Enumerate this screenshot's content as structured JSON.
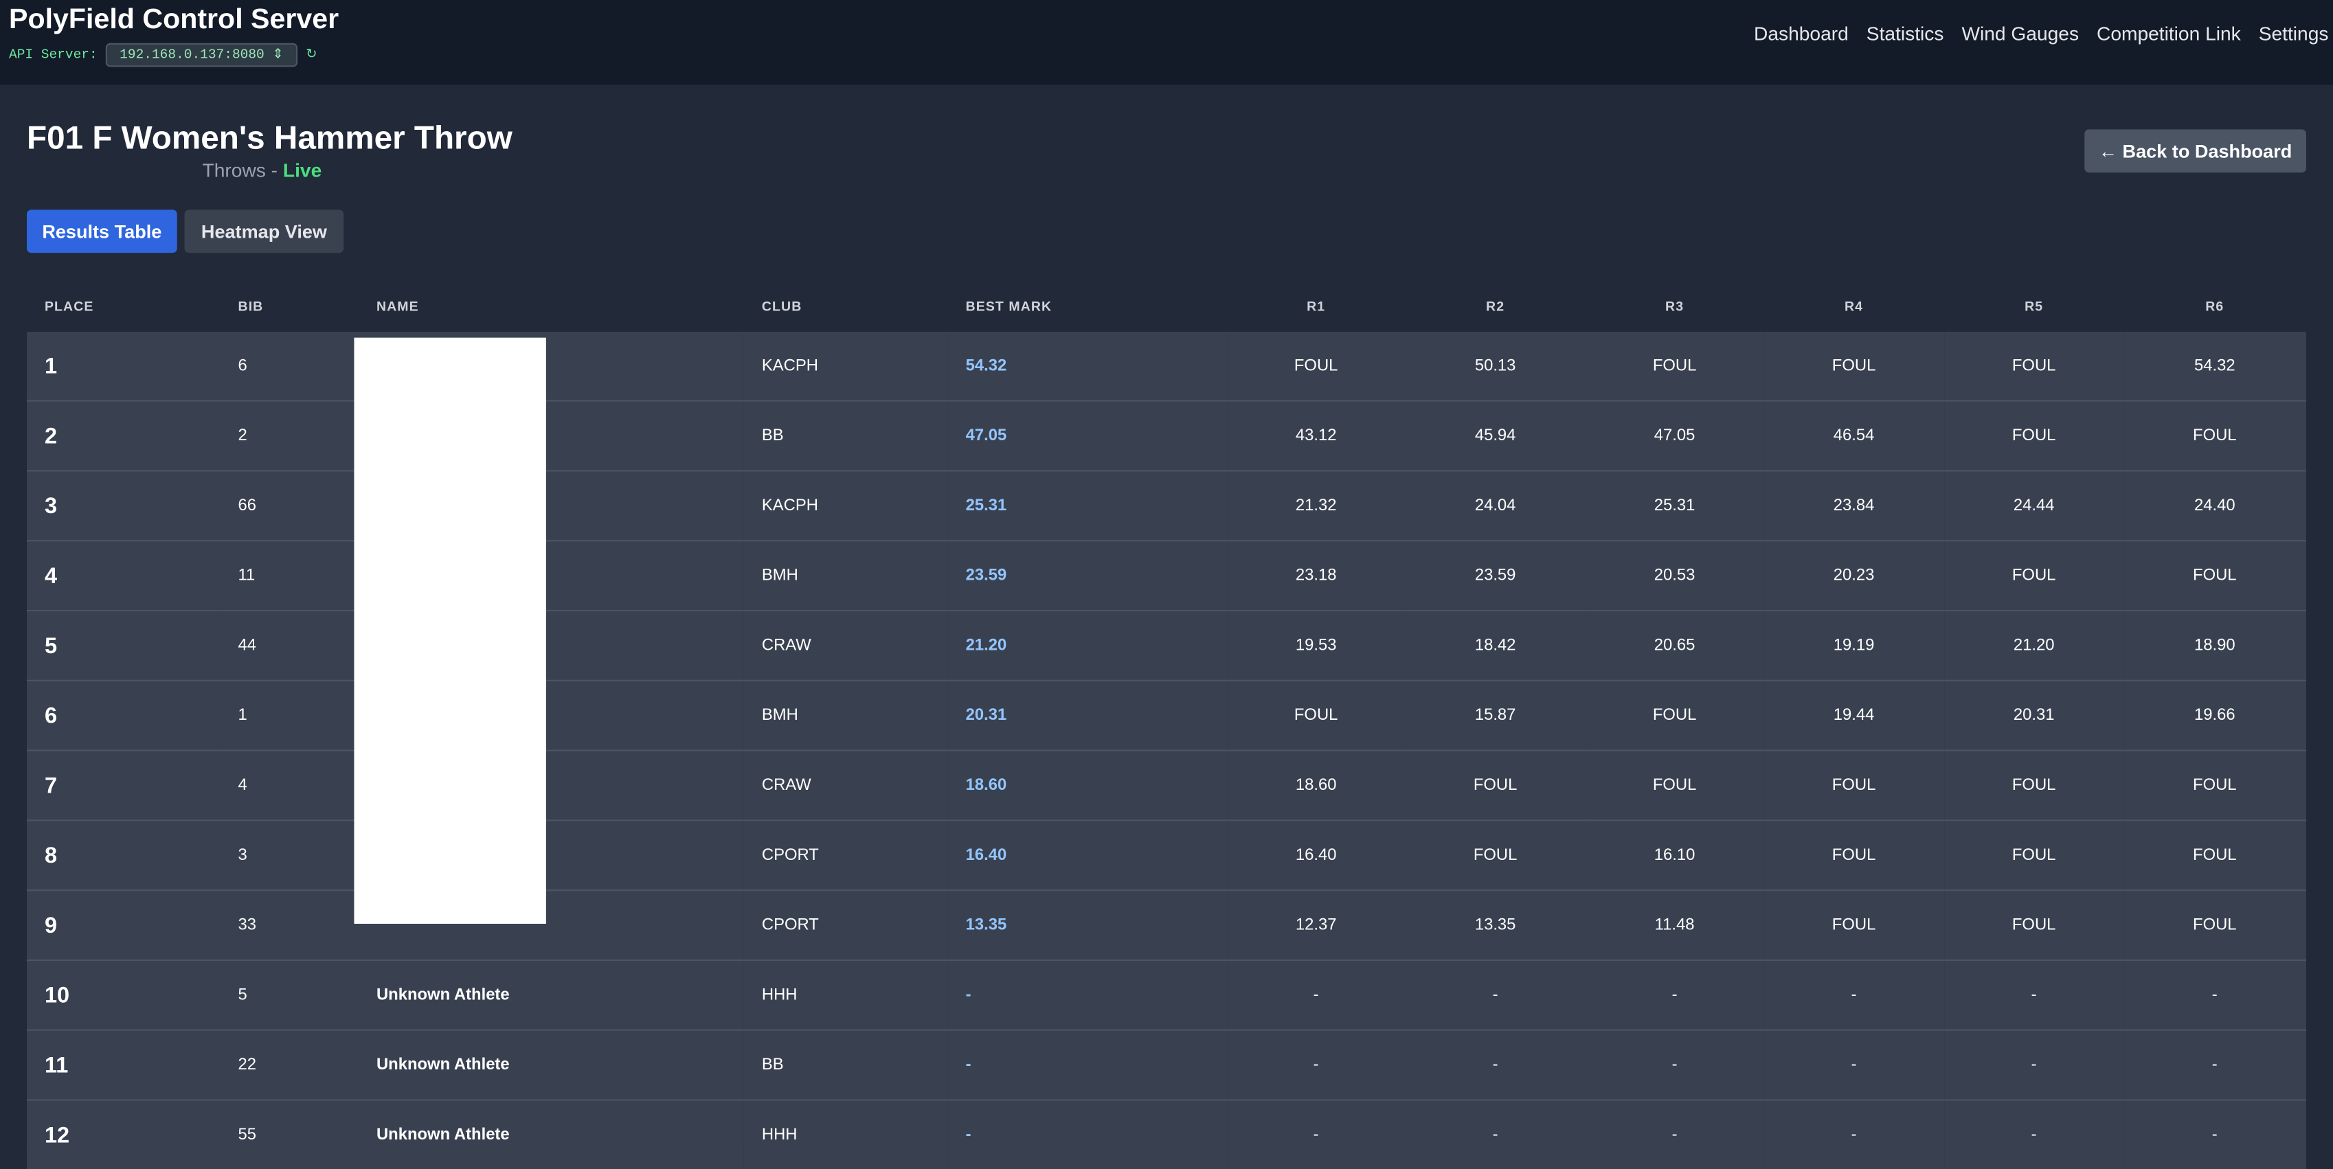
{
  "header": {
    "title": "PolyField Control Server",
    "api_label": "API Server:",
    "api_address": "192.168.0.137:8080",
    "nav": [
      "Dashboard",
      "Statistics",
      "Wind Gauges",
      "Competition Link",
      "Settings"
    ]
  },
  "event": {
    "title": "F01 F Women's Hammer Throw",
    "discipline": "Throws -",
    "status": "Live",
    "back_button": "← Back to Dashboard"
  },
  "tabs": [
    "Results Table",
    "Heatmap View"
  ],
  "table": {
    "columns": [
      "PLACE",
      "BIB",
      "NAME",
      "CLUB",
      "BEST MARK",
      "R1",
      "R2",
      "R3",
      "R4",
      "R5",
      "R6"
    ],
    "rows": [
      {
        "place": "1",
        "bib": "6",
        "club": "KACPH",
        "best": "54.32",
        "rounds": [
          "FOUL",
          "50.13",
          "FOUL",
          "FOUL",
          "FOUL",
          "54.32"
        ]
      },
      {
        "place": "2",
        "bib": "2",
        "club": "BB",
        "best": "47.05",
        "rounds": [
          "43.12",
          "45.94",
          "47.05",
          "46.54",
          "FOUL",
          "FOUL"
        ]
      },
      {
        "place": "3",
        "bib": "66",
        "club": "KACPH",
        "best": "25.31",
        "rounds": [
          "21.32",
          "24.04",
          "25.31",
          "23.84",
          "24.44",
          "24.40"
        ]
      },
      {
        "place": "4",
        "bib": "11",
        "club": "BMH",
        "best": "23.59",
        "rounds": [
          "23.18",
          "23.59",
          "20.53",
          "20.23",
          "FOUL",
          "FOUL"
        ]
      },
      {
        "place": "5",
        "bib": "44",
        "club": "CRAW",
        "best": "21.20",
        "rounds": [
          "19.53",
          "18.42",
          "20.65",
          "19.19",
          "21.20",
          "18.90"
        ]
      },
      {
        "place": "6",
        "bib": "1",
        "club": "BMH",
        "best": "20.31",
        "rounds": [
          "FOUL",
          "15.87",
          "FOUL",
          "19.44",
          "20.31",
          "19.66"
        ]
      },
      {
        "place": "7",
        "bib": "4",
        "club": "CRAW",
        "best": "18.60",
        "rounds": [
          "18.60",
          "FOUL",
          "FOUL",
          "FOUL",
          "FOUL",
          "FOUL"
        ]
      },
      {
        "place": "8",
        "bib": "3",
        "club": "CPORT",
        "best": "16.40",
        "rounds": [
          "16.40",
          "FOUL",
          "16.10",
          "FOUL",
          "FOUL",
          "FOUL"
        ]
      },
      {
        "place": "9",
        "bib": "33",
        "club": "CPORT",
        "best": "13.35",
        "rounds": [
          "12.37",
          "13.35",
          "11.48",
          "FOUL",
          "FOUL",
          "FOUL"
        ]
      },
      {
        "place": "10",
        "bib": "5",
        "name": "Unknown Athlete",
        "club": "HHH",
        "best": "-",
        "rounds": [
          "-",
          "-",
          "-",
          "-",
          "-",
          "-"
        ]
      },
      {
        "place": "11",
        "bib": "22",
        "name": "Unknown Athlete",
        "club": "BB",
        "best": "-",
        "rounds": [
          "-",
          "-",
          "-",
          "-",
          "-",
          "-"
        ]
      },
      {
        "place": "12",
        "bib": "55",
        "name": "Unknown Athlete",
        "club": "HHH",
        "best": "-",
        "rounds": [
          "-",
          "-",
          "-",
          "-",
          "-",
          "-"
        ]
      }
    ]
  }
}
